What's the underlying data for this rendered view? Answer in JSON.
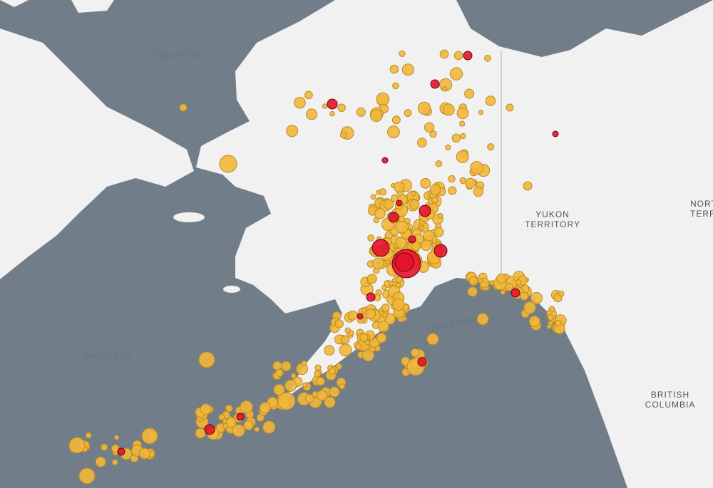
{
  "map": {
    "labels": {
      "chukchi": "Chukchi Sea",
      "bering": "Bering Sea",
      "gulf": "Gulf of Alaska",
      "yukon": "YUKON TERRITORY",
      "bc": "BRITISH COLUMBIA",
      "nwt": "NORTHWEST TERRITORIES"
    }
  }
}
